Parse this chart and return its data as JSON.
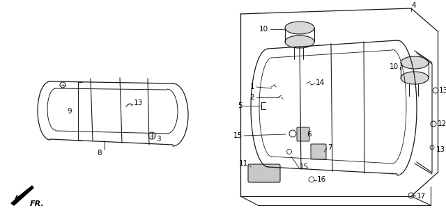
{
  "background_color": "#ffffff",
  "line_color": "#1a1a1a",
  "figsize": [
    6.4,
    3.09
  ],
  "dpi": 100
}
